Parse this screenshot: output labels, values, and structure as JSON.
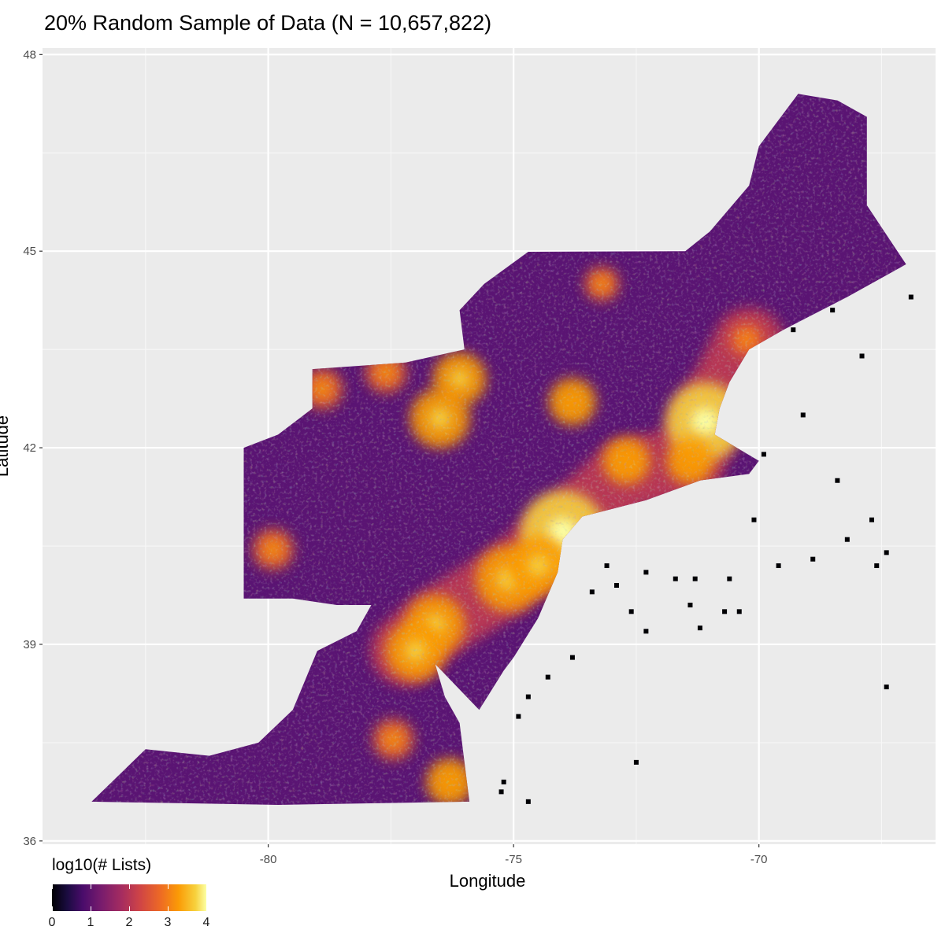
{
  "title": "20% Random Sample of Data (N = 10,657,822)",
  "chart_data": {
    "type": "heatmap",
    "title": "20% Random Sample of Data (N = 10,657,822)",
    "xlabel": "Longitude",
    "ylabel": "Latitude",
    "xlim": [
      -84.6,
      -66.4
    ],
    "ylim": [
      35.95,
      48.1
    ],
    "x_ticks": [
      -80,
      -75,
      -70
    ],
    "x_tick_labels": [
      "-80",
      "-75",
      "-70"
    ],
    "y_ticks": [
      36,
      39,
      42,
      45,
      48
    ],
    "y_tick_labels": [
      "36",
      "39",
      "42",
      "45",
      "48"
    ],
    "grid": true,
    "panel_background": "#ebebeb",
    "fill_variable": "log10(# Lists)",
    "colorscale": "inferno",
    "fill_range": [
      0,
      4
    ],
    "legend": {
      "title": "log10(# Lists)",
      "position": "bottom-left",
      "breaks": [
        0,
        1,
        2,
        3,
        4
      ],
      "labels": [
        "0",
        "1",
        "2",
        "3",
        "4"
      ]
    },
    "region_outline": [
      [
        -83.6,
        36.6
      ],
      [
        -82.5,
        37.4
      ],
      [
        -81.2,
        37.3
      ],
      [
        -80.2,
        37.5
      ],
      [
        -79.5,
        38.0
      ],
      [
        -79.0,
        38.9
      ],
      [
        -78.2,
        39.2
      ],
      [
        -77.9,
        39.6
      ],
      [
        -77.0,
        39.7
      ],
      [
        -76.5,
        39.6
      ],
      [
        -76.2,
        39.3
      ],
      [
        -76.6,
        38.7
      ],
      [
        -76.4,
        38.2
      ],
      [
        -76.1,
        37.8
      ],
      [
        -76.0,
        37.2
      ],
      [
        -75.9,
        36.6
      ],
      [
        -79.8,
        36.55
      ],
      [
        -83.6,
        36.6
      ]
    ],
    "region_outline_2": [
      [
        -80.5,
        39.7
      ],
      [
        -80.5,
        42.0
      ],
      [
        -79.8,
        42.2
      ],
      [
        -79.1,
        42.6
      ],
      [
        -79.1,
        43.2
      ],
      [
        -77.2,
        43.3
      ],
      [
        -76.0,
        43.5
      ],
      [
        -76.1,
        44.1
      ],
      [
        -75.6,
        44.5
      ],
      [
        -74.7,
        44.99
      ],
      [
        -71.5,
        45.0
      ],
      [
        -71.0,
        45.3
      ],
      [
        -70.2,
        46.0
      ],
      [
        -70.0,
        46.6
      ],
      [
        -69.2,
        47.4
      ],
      [
        -68.4,
        47.3
      ],
      [
        -67.8,
        47.05
      ],
      [
        -67.8,
        45.7
      ],
      [
        -67.0,
        44.8
      ],
      [
        -68.2,
        44.3
      ],
      [
        -69.5,
        43.8
      ],
      [
        -70.2,
        43.5
      ],
      [
        -70.6,
        43.0
      ],
      [
        -70.8,
        42.6
      ],
      [
        -70.9,
        42.2
      ],
      [
        -70.0,
        41.8
      ],
      [
        -70.2,
        41.6
      ],
      [
        -71.2,
        41.5
      ],
      [
        -72.3,
        41.2
      ],
      [
        -73.6,
        40.95
      ],
      [
        -74.0,
        40.6
      ],
      [
        -74.1,
        40.1
      ],
      [
        -74.5,
        39.4
      ],
      [
        -75.0,
        38.8
      ],
      [
        -75.2,
        38.6
      ],
      [
        -75.7,
        38.0
      ],
      [
        -76.6,
        38.7
      ],
      [
        -76.2,
        39.3
      ],
      [
        -76.5,
        39.6
      ],
      [
        -77.0,
        39.7
      ],
      [
        -77.9,
        39.6
      ],
      [
        -78.6,
        39.6
      ],
      [
        -79.5,
        39.7
      ],
      [
        -80.5,
        39.7
      ]
    ],
    "hotspots": [
      {
        "lon": -74.0,
        "lat": 40.7,
        "value": 3.9
      },
      {
        "lon": -71.1,
        "lat": 42.4,
        "value": 3.8
      },
      {
        "lon": -75.1,
        "lat": 40.0,
        "value": 3.6
      },
      {
        "lon": -76.6,
        "lat": 39.3,
        "value": 3.5
      },
      {
        "lon": -77.0,
        "lat": 38.9,
        "value": 3.5
      },
      {
        "lon": -76.1,
        "lat": 43.05,
        "value": 3.4
      },
      {
        "lon": -76.5,
        "lat": 42.45,
        "value": 3.5
      },
      {
        "lon": -73.8,
        "lat": 42.7,
        "value": 3.3
      },
      {
        "lon": -72.7,
        "lat": 41.8,
        "value": 3.3
      },
      {
        "lon": -71.4,
        "lat": 41.8,
        "value": 3.3
      },
      {
        "lon": -79.9,
        "lat": 40.45,
        "value": 3.2
      },
      {
        "lon": -77.6,
        "lat": 43.15,
        "value": 3.2
      },
      {
        "lon": -78.9,
        "lat": 42.9,
        "value": 3.2
      },
      {
        "lon": -73.2,
        "lat": 44.5,
        "value": 3.1
      },
      {
        "lon": -76.3,
        "lat": 36.9,
        "value": 3.3
      },
      {
        "lon": -77.45,
        "lat": 37.55,
        "value": 3.2
      },
      {
        "lon": -70.25,
        "lat": 43.65,
        "value": 3.1
      },
      {
        "lon": -74.5,
        "lat": 40.2,
        "value": 3.5
      }
    ],
    "sparse_points": [
      [
        -73.1,
        40.2
      ],
      [
        -72.3,
        40.1
      ],
      [
        -71.7,
        40.0
      ],
      [
        -71.3,
        40.0
      ],
      [
        -70.6,
        40.0
      ],
      [
        -70.1,
        40.9
      ],
      [
        -69.6,
        40.2
      ],
      [
        -68.9,
        40.3
      ],
      [
        -68.2,
        40.6
      ],
      [
        -67.7,
        40.9
      ],
      [
        -67.4,
        38.35
      ],
      [
        -72.5,
        37.2
      ],
      [
        -73.8,
        38.8
      ],
      [
        -74.3,
        38.5
      ],
      [
        -74.7,
        38.2
      ],
      [
        -74.9,
        37.9
      ],
      [
        -72.3,
        39.2
      ],
      [
        -71.2,
        39.25
      ],
      [
        -70.7,
        39.5
      ],
      [
        -68.4,
        41.5
      ],
      [
        -69.9,
        41.9
      ],
      [
        -69.1,
        42.5
      ],
      [
        -67.9,
        43.4
      ],
      [
        -66.9,
        44.3
      ],
      [
        -68.5,
        44.1
      ],
      [
        -69.3,
        43.8
      ],
      [
        -75.25,
        36.75
      ],
      [
        -74.7,
        36.6
      ],
      [
        -75.2,
        36.9
      ],
      [
        -71.4,
        39.6
      ],
      [
        -72.6,
        39.5
      ],
      [
        -70.4,
        39.5
      ],
      [
        -73.4,
        39.8
      ],
      [
        -72.9,
        39.9
      ],
      [
        -67.4,
        40.4
      ],
      [
        -67.6,
        40.2
      ]
    ]
  }
}
